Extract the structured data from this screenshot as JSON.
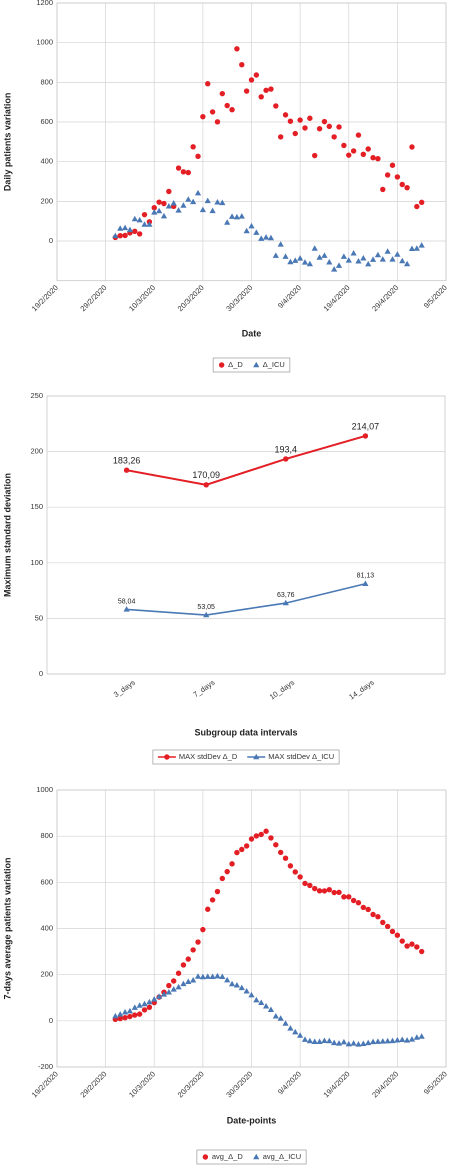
{
  "chart_data": [
    {
      "type": "scatter",
      "xlabel": "Date",
      "ylabel": "Daily patients variation",
      "xlim": [
        "19/2/2020",
        "9/5/2020"
      ],
      "xticks": [
        "19/2/2020",
        "29/2/2020",
        "10/3/2020",
        "20/3/2020",
        "30/3/2020",
        "9/4/2020",
        "19/4/2020",
        "29/4/2020",
        "9/5/2020"
      ],
      "ylim": [
        -200,
        1200
      ],
      "yticks": [
        0,
        200,
        400,
        600,
        800,
        1000,
        1200
      ],
      "grid": true,
      "legend": "bottom",
      "x": [
        "2/3/2020",
        "3/3/2020",
        "4/3/2020",
        "5/3/2020",
        "6/3/2020",
        "7/3/2020",
        "8/3/2020",
        "9/3/2020",
        "10/3/2020",
        "11/3/2020",
        "12/3/2020",
        "13/3/2020",
        "14/3/2020",
        "15/3/2020",
        "16/3/2020",
        "17/3/2020",
        "18/3/2020",
        "19/3/2020",
        "20/3/2020",
        "21/3/2020",
        "22/3/2020",
        "23/3/2020",
        "24/3/2020",
        "25/3/2020",
        "26/3/2020",
        "27/3/2020",
        "28/3/2020",
        "29/3/2020",
        "30/3/2020",
        "31/3/2020",
        "1/4/2020",
        "2/4/2020",
        "3/4/2020",
        "4/4/2020",
        "5/4/2020",
        "6/4/2020",
        "7/4/2020",
        "8/4/2020",
        "9/4/2020",
        "10/4/2020",
        "11/4/2020",
        "12/4/2020",
        "13/4/2020",
        "14/4/2020",
        "15/4/2020",
        "16/4/2020",
        "17/4/2020",
        "18/4/2020",
        "19/4/2020",
        "20/4/2020",
        "21/4/2020",
        "22/4/2020",
        "23/4/2020",
        "24/4/2020",
        "25/4/2020",
        "26/4/2020",
        "27/4/2020",
        "28/4/2020",
        "29/4/2020",
        "30/4/2020",
        "1/5/2020",
        "2/5/2020",
        "3/5/2020",
        "4/5/2020"
      ],
      "series": [
        {
          "name": "Δ_D",
          "color": "#e31e24",
          "marker": "circle",
          "values": [
            18,
            27,
            28,
            41,
            49,
            36,
            133,
            97,
            168,
            196,
            189,
            250,
            175,
            368,
            349,
            345,
            475,
            427,
            627,
            793,
            651,
            601,
            743,
            683,
            662,
            969,
            889,
            756,
            812,
            837,
            727,
            760,
            766,
            681,
            525,
            636,
            604,
            542,
            610,
            570,
            619,
            431,
            566,
            602,
            578,
            525,
            575,
            482,
            433,
            454,
            534,
            437,
            464,
            420,
            415,
            260,
            333,
            382,
            323,
            285,
            269,
            474,
            174,
            195
          ]
        },
        {
          "name": "Δ_ICU",
          "color": "#4a78b5",
          "marker": "triangle",
          "values": [
            26,
            63,
            66,
            56,
            111,
            105,
            83,
            83,
            144,
            151,
            125,
            175,
            190,
            154,
            179,
            209,
            197,
            241,
            157,
            202,
            152,
            195,
            192,
            93,
            123,
            120,
            124,
            50,
            75,
            42,
            12,
            18,
            15,
            -74,
            -17,
            -79,
            -106,
            -99,
            -88,
            -108,
            -116,
            -38,
            -83,
            -74,
            -107,
            -143,
            -124,
            -79,
            -98,
            -62,
            -102,
            -87,
            -117,
            -94,
            -71,
            -93,
            -53,
            -93,
            -68,
            -101,
            -116,
            -39,
            -38,
            -22
          ]
        }
      ]
    },
    {
      "type": "line",
      "xlabel": "Subgroup data intervals",
      "ylabel": "Maximum standard deviation",
      "categories": [
        "3_days",
        "7_days",
        "10_days",
        "14_days"
      ],
      "ylim": [
        0,
        250
      ],
      "yticks": [
        0,
        50,
        100,
        150,
        200,
        250
      ],
      "grid": true,
      "legend": "bottom",
      "series": [
        {
          "name": "MAX stdDev Δ_D",
          "color": "#e31e24",
          "marker": "circle",
          "values": [
            183.26,
            170.09,
            193.4,
            214.07
          ],
          "value_labels": [
            "183,26",
            "170,09",
            "193,4",
            "214,07"
          ]
        },
        {
          "name": "MAX stdDev Δ_ICU",
          "color": "#4a78b5",
          "marker": "triangle",
          "values": [
            58.04,
            53.05,
            63.76,
            81.13
          ],
          "value_labels": [
            "58,04",
            "53,05",
            "63,76",
            "81,13"
          ]
        }
      ]
    },
    {
      "type": "scatter",
      "xlabel": "Date-points",
      "ylabel": "7-days average patients variation",
      "xlim": [
        "19/2/2020",
        "9/5/2020"
      ],
      "xticks": [
        "19/2/2020",
        "29/2/2020",
        "10/3/2020",
        "20/3/2020",
        "30/3/2020",
        "9/4/2020",
        "19/4/2020",
        "29/4/2020",
        "9/5/2020"
      ],
      "ylim": [
        -200,
        1000
      ],
      "yticks": [
        -200,
        0,
        200,
        400,
        600,
        800,
        1000
      ],
      "grid": true,
      "legend": "bottom",
      "x": [
        "2/3/2020",
        "3/3/2020",
        "4/3/2020",
        "5/3/2020",
        "6/3/2020",
        "7/3/2020",
        "8/3/2020",
        "9/3/2020",
        "10/3/2020",
        "11/3/2020",
        "12/3/2020",
        "13/3/2020",
        "14/3/2020",
        "15/3/2020",
        "16/3/2020",
        "17/3/2020",
        "18/3/2020",
        "19/3/2020",
        "20/3/2020",
        "21/3/2020",
        "22/3/2020",
        "23/3/2020",
        "24/3/2020",
        "25/3/2020",
        "26/3/2020",
        "27/3/2020",
        "28/3/2020",
        "29/3/2020",
        "30/3/2020",
        "31/3/2020",
        "1/4/2020",
        "2/4/2020",
        "3/4/2020",
        "4/4/2020",
        "5/4/2020",
        "6/4/2020",
        "7/4/2020",
        "8/4/2020",
        "9/4/2020",
        "10/4/2020",
        "11/4/2020",
        "12/4/2020",
        "13/4/2020",
        "14/4/2020",
        "15/4/2020",
        "16/4/2020",
        "17/4/2020",
        "18/4/2020",
        "19/4/2020",
        "20/4/2020",
        "21/4/2020",
        "22/4/2020",
        "23/4/2020",
        "24/4/2020",
        "25/4/2020",
        "26/4/2020",
        "27/4/2020",
        "28/4/2020",
        "29/4/2020",
        "30/4/2020",
        "1/5/2020",
        "2/5/2020",
        "3/5/2020",
        "4/5/2020"
      ],
      "series": [
        {
          "name": "avg_Δ_D",
          "color": "#e31e24",
          "marker": "circle",
          "values": [
            6.4,
            9.9,
            13.6,
            18.7,
            25.1,
            29.1,
            47.4,
            58.7,
            78.9,
            102.9,
            124,
            152.7,
            172.6,
            206.1,
            242.1,
            267.4,
            307.3,
            341.3,
            395.1,
            483.4,
            523.9,
            559.9,
            616.7,
            646.4,
            680,
            728.9,
            742.6,
            757.6,
            787.7,
            801.1,
            807.4,
            821.4,
            792.4,
            762.7,
            729.7,
            704.6,
            671.3,
            644.9,
            623.4,
            595.4,
            586.6,
            573.1,
            563.1,
            562.9,
            568,
            555.9,
            556.6,
            537,
            537.3,
            521.3,
            511.6,
            491.4,
            482.7,
            460.6,
            451,
            426.3,
            409,
            387.3,
            371,
            345.4,
            323.9,
            332.3,
            320,
            300.3
          ]
        },
        {
          "name": "avg_Δ_ICU",
          "color": "#4a78b5",
          "marker": "triangle",
          "values": [
            20,
            27.7,
            37,
            42.1,
            56.9,
            66,
            72.9,
            81,
            92.6,
            104.7,
            114.6,
            123.7,
            135.9,
            146,
            159.7,
            169,
            175.6,
            192.1,
            189.6,
            191.3,
            191,
            193.3,
            190.9,
            176,
            159.1,
            153.9,
            142.7,
            128.1,
            111,
            89.6,
            78,
            63,
            48,
            19.7,
            10.1,
            -11.9,
            -33,
            -48.9,
            -64,
            -81.6,
            -87.6,
            -90.6,
            -91.1,
            -86.6,
            -87.7,
            -95.6,
            -97.9,
            -92.6,
            -101.1,
            -98.1,
            -102.1,
            -99.3,
            -95.6,
            -91.3,
            -90.1,
            -89.4,
            -88.1,
            -86.9,
            -84.1,
            -81.9,
            -85,
            -80.4,
            -72.6,
            -68.1
          ]
        }
      ]
    }
  ]
}
